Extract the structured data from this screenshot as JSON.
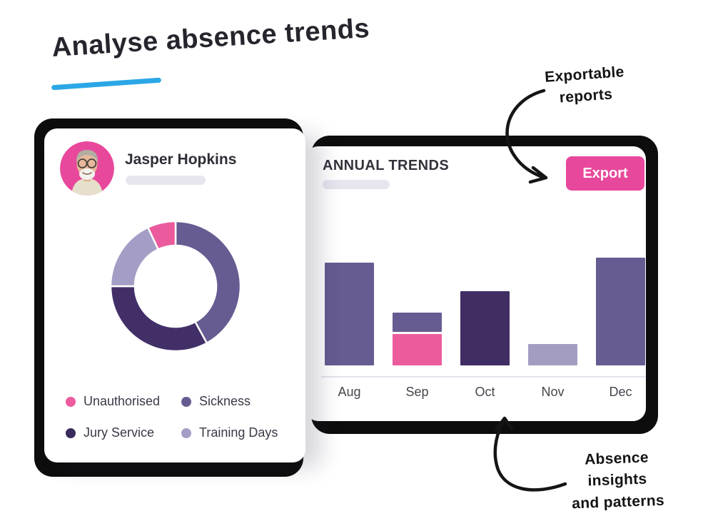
{
  "page": {
    "title": "Analyse absence trends",
    "underline_color": "#2BA7E6"
  },
  "annotations": {
    "export_note": {
      "line1": "Exportable",
      "line2": "reports"
    },
    "insights_note": {
      "line1": "Absence insights",
      "line2": "and patterns"
    }
  },
  "profile_card": {
    "name": "Jasper Hopkins",
    "avatar": "elderly-man-photo-on-pink",
    "legend": [
      {
        "label": "Unauthorised",
        "color": "#EC5C9D"
      },
      {
        "label": "Sickness",
        "color": "#675C91"
      },
      {
        "label": "Jury Service",
        "color": "#3A2B5C"
      },
      {
        "label": "Training Days",
        "color": "#A49DC5"
      }
    ]
  },
  "trends_card": {
    "heading": "ANNUAL TRENDS",
    "export_label": "Export",
    "export_color": "#E8489B"
  },
  "chart_data": [
    {
      "type": "pie",
      "donut": true,
      "title": "Absence types by share",
      "labels": [
        "Sickness",
        "Jury Service",
        "Training Days",
        "Unauthorised"
      ],
      "values": [
        42,
        33,
        18,
        7
      ],
      "colors": [
        "#675C91",
        "#432F68",
        "#A49DC5",
        "#EA5A9C"
      ],
      "start_angle_deg": 0,
      "legend_position": "below"
    },
    {
      "type": "bar",
      "title": "ANNUAL TRENDS",
      "categories": [
        "Aug",
        "Sep",
        "Oct",
        "Nov",
        "Dec"
      ],
      "value_units": "relative (pixel-measured, no axis shown)",
      "grid": false,
      "bars": [
        {
          "month": "Aug",
          "segments": [
            {
              "value": 144,
              "color": "#675C91"
            }
          ]
        },
        {
          "month": "Sep",
          "segments": [
            {
              "value": 44,
              "color": "#EC5C9D"
            },
            {
              "value": 27,
              "color": "#675C91"
            }
          ]
        },
        {
          "month": "Oct",
          "segments": [
            {
              "value": 104,
              "color": "#3F2D64"
            }
          ]
        },
        {
          "month": "Nov",
          "segments": [
            {
              "value": 30,
              "color": "#A49DC2"
            }
          ]
        },
        {
          "month": "Dec",
          "segments": [
            {
              "value": 151,
              "color": "#675C91"
            }
          ]
        }
      ]
    }
  ]
}
